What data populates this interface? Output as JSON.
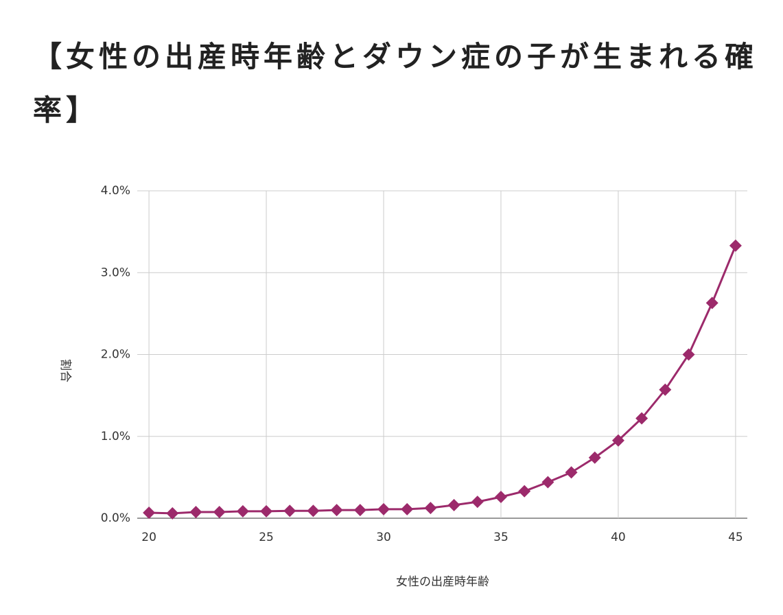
{
  "chart_data": {
    "type": "line",
    "title": "【女性の出産時年齢とダウン症の子が生まれる確率】",
    "x_label": "女性の出産時年齢",
    "y_label": "割合",
    "x": [
      20,
      21,
      22,
      23,
      24,
      25,
      26,
      27,
      28,
      29,
      30,
      31,
      32,
      33,
      34,
      35,
      36,
      37,
      38,
      39,
      40,
      41,
      42,
      43,
      44,
      45
    ],
    "values": [
      0.067,
      0.06,
      0.075,
      0.075,
      0.085,
      0.085,
      0.09,
      0.09,
      0.1,
      0.1,
      0.11,
      0.11,
      0.125,
      0.16,
      0.2,
      0.26,
      0.33,
      0.44,
      0.56,
      0.74,
      0.95,
      1.22,
      1.57,
      2.0,
      2.63,
      3.33
    ],
    "color": "#9c2a6b",
    "xlim": [
      19.5,
      45.5
    ],
    "xticks": [
      20,
      25,
      30,
      35,
      40,
      45
    ],
    "ylim": [
      0,
      4
    ],
    "yticks": [
      {
        "value": 0,
        "label": "0.0%"
      },
      {
        "value": 1,
        "label": "1.0%"
      },
      {
        "value": 2,
        "label": "2.0%"
      },
      {
        "value": 3,
        "label": "3.0%"
      },
      {
        "value": 4,
        "label": "4.0%"
      }
    ],
    "grid": true,
    "marker": "diamond"
  }
}
